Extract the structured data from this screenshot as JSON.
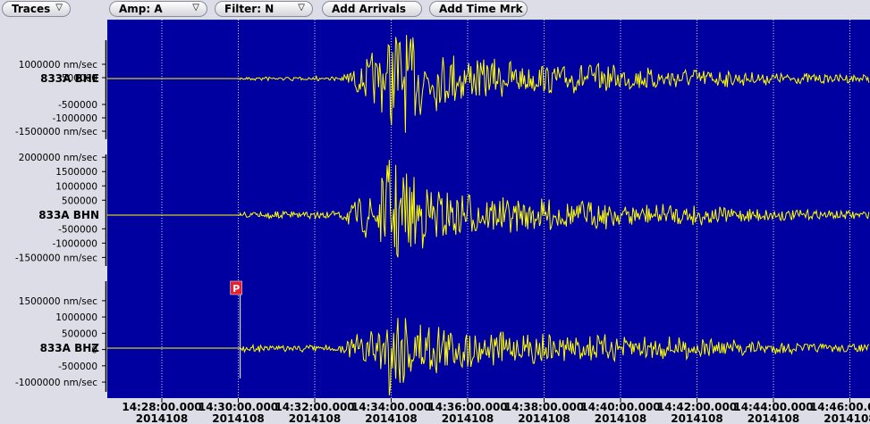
{
  "toolbar": {
    "traces_label": "Traces",
    "amp_label": "Amp: A",
    "filter_label": "Filter: N",
    "add_arrivals_label": "Add Arrivals",
    "add_time_mark_label": "Add Time Mrk",
    "dropdown_icon": "triangle-down-icon"
  },
  "colors": {
    "background": "#dcdde6",
    "plot_bg": "#0000a0",
    "trace": "#ffff00",
    "grid": "#ffffff",
    "pick": "#e8202a"
  },
  "chart_data": {
    "type": "line",
    "x_ticks": [
      {
        "time": "14:28:00.000",
        "date": "2014108"
      },
      {
        "time": "14:30:00.000",
        "date": "2014108"
      },
      {
        "time": "14:32:00.000",
        "date": "2014108"
      },
      {
        "time": "14:34:00.000",
        "date": "2014108"
      },
      {
        "time": "14:36:00.000",
        "date": "2014108"
      },
      {
        "time": "14:38:00.000",
        "date": "2014108"
      },
      {
        "time": "14:40:00.000",
        "date": "2014108"
      },
      {
        "time": "14:42:00.000",
        "date": "2014108"
      },
      {
        "time": "14:44:00.000",
        "date": "2014108"
      },
      {
        "time": "14:46:00.000",
        "date": "2014108"
      }
    ],
    "grid": true,
    "unit": "nm/sec",
    "panels": [
      {
        "name": "833A BHE",
        "ylim": [
          -1800000,
          1900000
        ],
        "ticks": [
          {
            "value": 1000000,
            "label": "1000000 nm/sec"
          },
          {
            "value": 500000,
            "label": "500000"
          },
          {
            "value": -500000,
            "label": "-500000"
          },
          {
            "value": -1000000,
            "label": "-1000000"
          },
          {
            "value": -1500000,
            "label": "-1500000 nm/sec"
          }
        ]
      },
      {
        "name": "833A BHN",
        "ylim": [
          -1800000,
          2100000
        ],
        "ticks": [
          {
            "value": 2000000,
            "label": "2000000 nm/sec"
          },
          {
            "value": 1500000,
            "label": "1500000"
          },
          {
            "value": 1000000,
            "label": "1000000"
          },
          {
            "value": 500000,
            "label": "500000"
          },
          {
            "value": -500000,
            "label": "-500000"
          },
          {
            "value": -1000000,
            "label": "-1000000"
          },
          {
            "value": -1500000,
            "label": "-1500000 nm/sec"
          }
        ]
      },
      {
        "name": "833A BHZ",
        "ylim": [
          -1300000,
          2100000
        ],
        "ticks": [
          {
            "value": 1500000,
            "label": "1500000 nm/sec"
          },
          {
            "value": 1000000,
            "label": "1000000"
          },
          {
            "value": 500000,
            "label": "500000"
          },
          {
            "value": 0,
            "label": "0"
          },
          {
            "value": -500000,
            "label": "-500000"
          },
          {
            "value": -1000000,
            "label": "-1000000 nm/sec"
          }
        ]
      }
    ],
    "pick": {
      "label": "P",
      "time": "14:30:03"
    }
  }
}
